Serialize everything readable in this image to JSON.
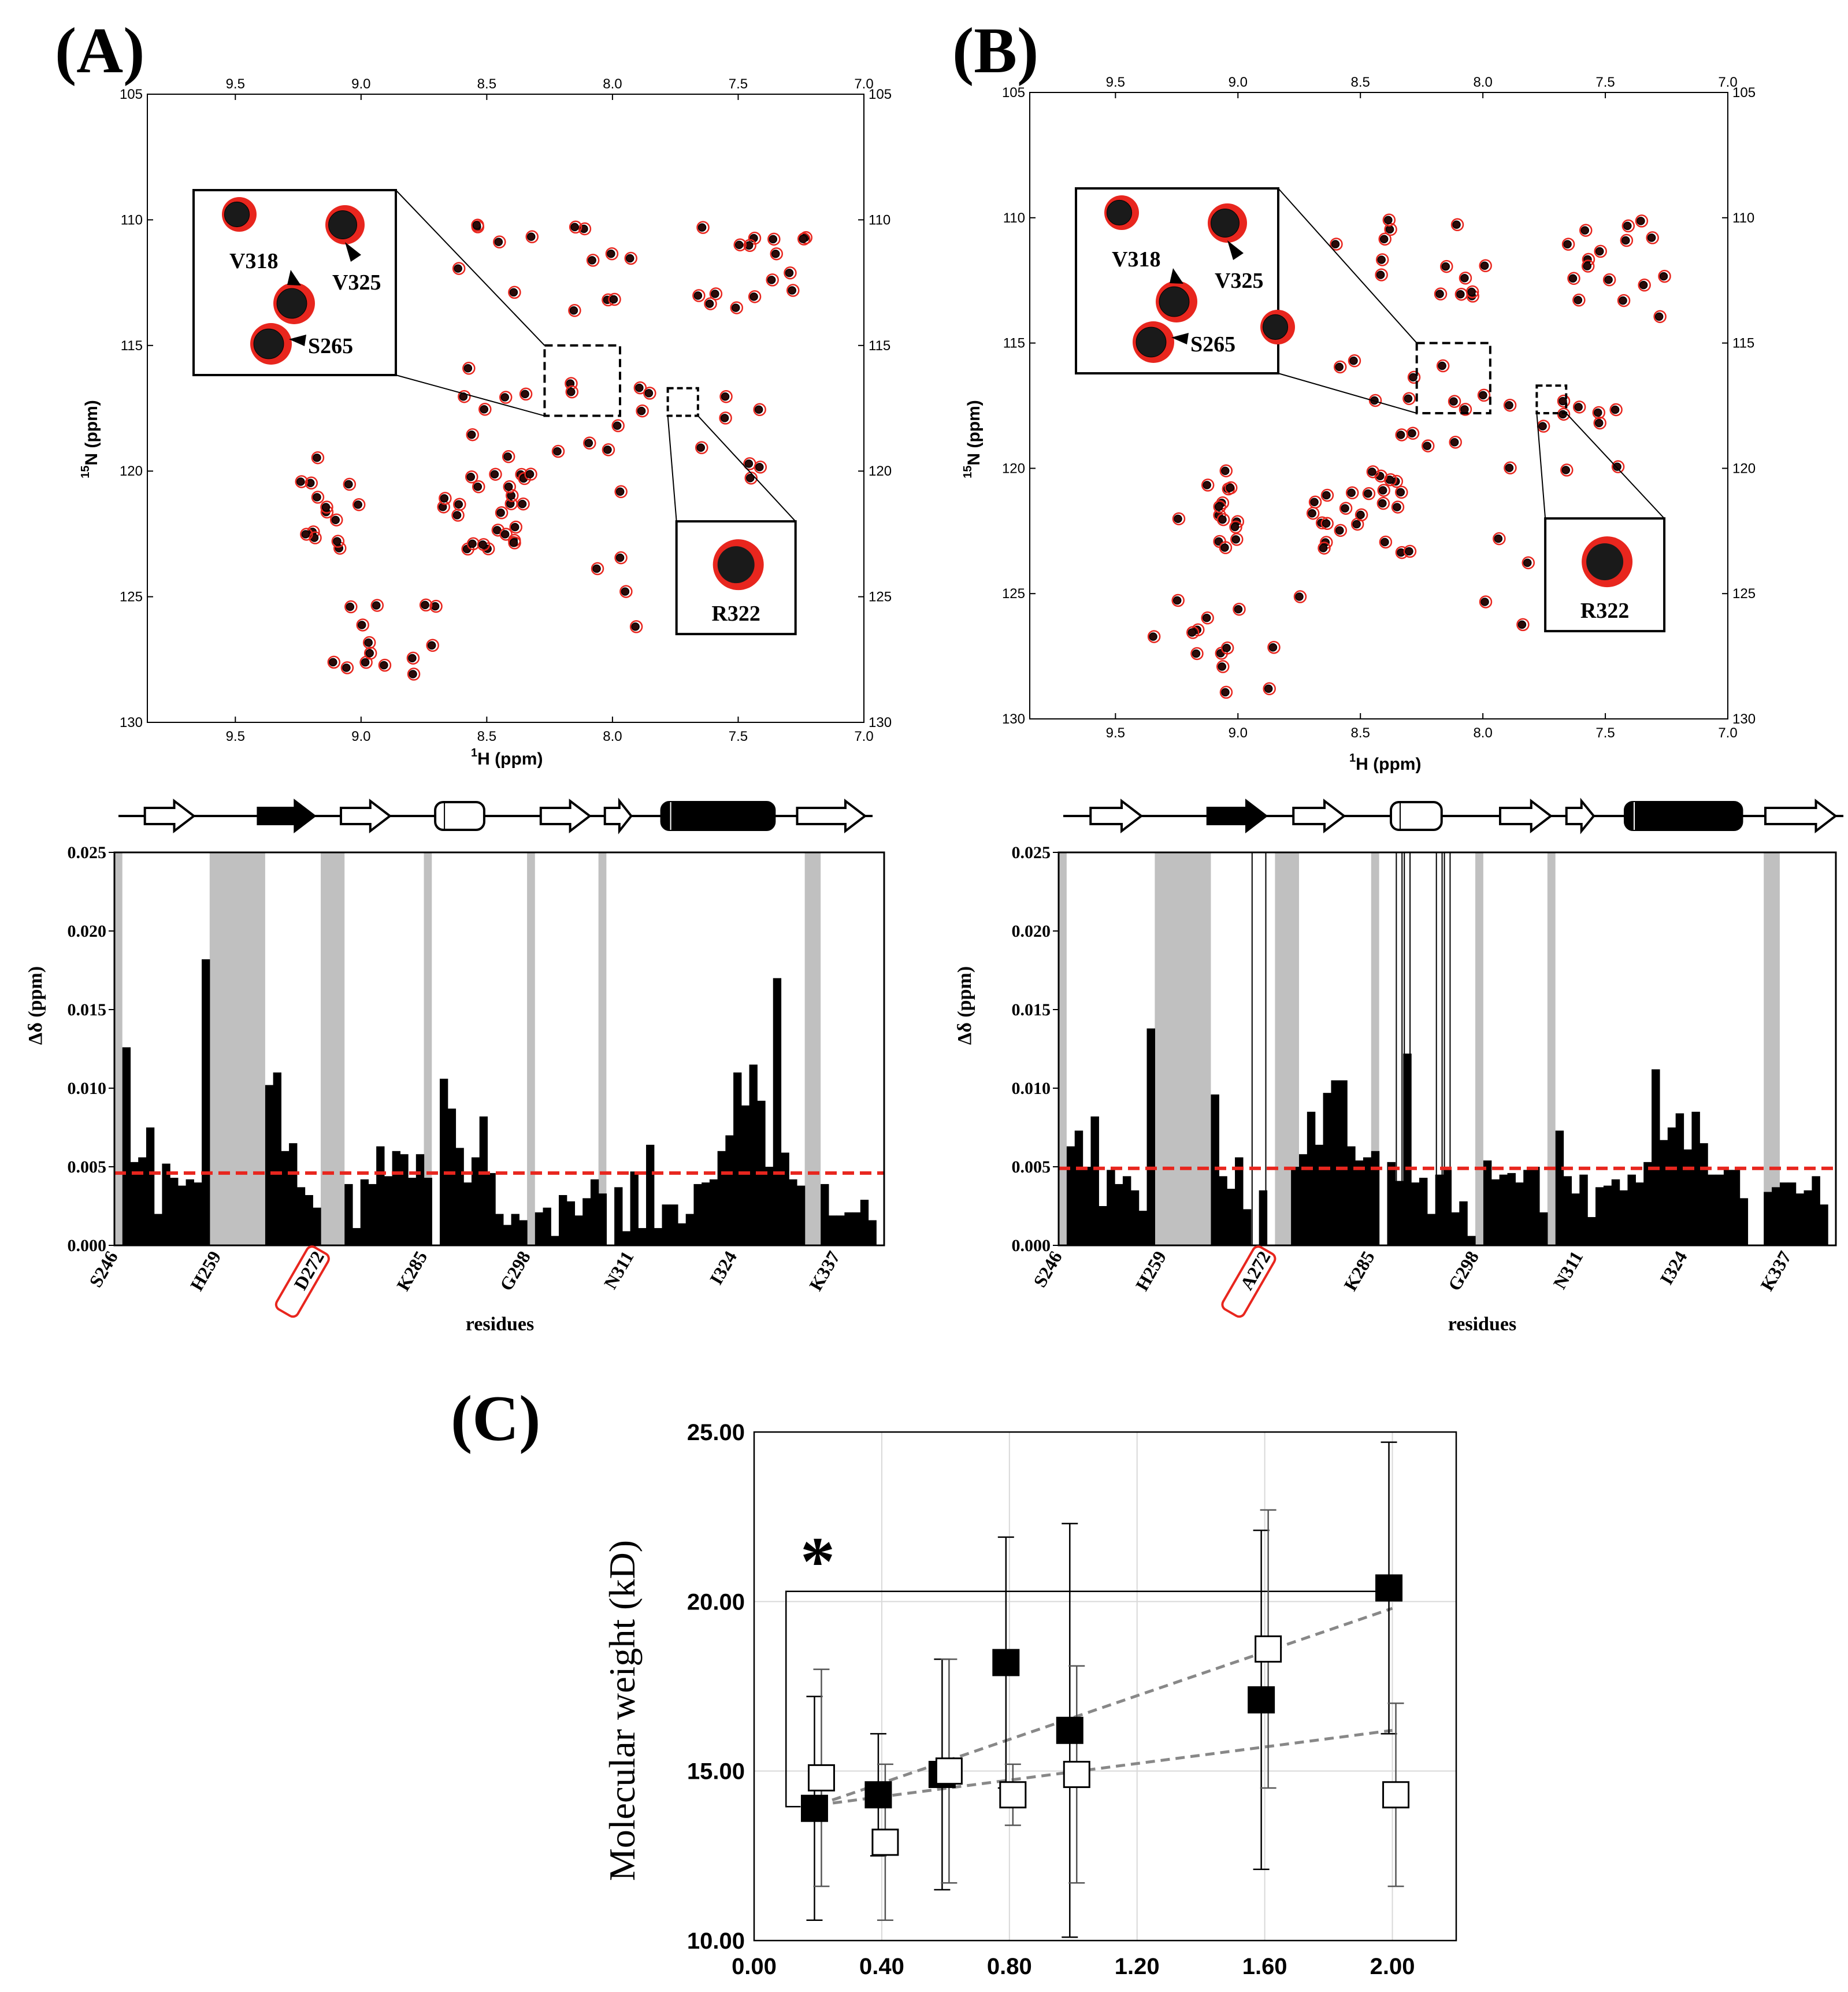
{
  "panels": {
    "A": {
      "label": "(A)",
      "hsqc": {
        "x_ticks": [
          "9.5",
          "9.0",
          "8.5",
          "8.0",
          "7.5",
          "7.0"
        ],
        "y_ticks": [
          "105",
          "110",
          "115",
          "120",
          "125",
          "130"
        ],
        "x_label": "1H (ppm)",
        "x_label_sup": "1",
        "x_label_main": "H (ppm)",
        "y_label_sup": "15",
        "y_label_main": "N (ppm)",
        "inset_labels": [
          "V318",
          "V325",
          "S265"
        ],
        "inset2_label": "R322"
      },
      "bar": {
        "y_ticks": [
          "0.025",
          "0.020",
          "0.015",
          "0.010",
          "0.005",
          "0.000"
        ],
        "y_label": "Δδ (ppm)",
        "x_ticks": [
          "S246",
          "H259",
          "D272",
          "K285",
          "G298",
          "N311",
          "I324",
          "K337"
        ],
        "highlight_tick": "D272",
        "x_label": "residues"
      }
    },
    "B": {
      "label": "(B)",
      "hsqc": {
        "x_ticks": [
          "9.5",
          "9.0",
          "8.5",
          "8.0",
          "7.5",
          "7.0"
        ],
        "y_ticks": [
          "105",
          "110",
          "115",
          "120",
          "125",
          "130"
        ],
        "x_label_sup": "1",
        "x_label_main": "H (ppm)",
        "y_label_sup": "15",
        "y_label_main": "N (ppm)",
        "inset_labels": [
          "V318",
          "V325",
          "S265"
        ],
        "inset2_label": "R322"
      },
      "bar": {
        "y_ticks": [
          "0.025",
          "0.020",
          "0.015",
          "0.010",
          "0.005",
          "0.000"
        ],
        "y_label": "Δδ (ppm)",
        "x_ticks": [
          "S246",
          "H259",
          "A272",
          "K285",
          "G298",
          "N311",
          "I324",
          "K337"
        ],
        "highlight_tick": "A272",
        "x_label": "residues"
      }
    },
    "C": {
      "label": "(C)",
      "significance": "*"
    }
  },
  "colors": {
    "threshold": "#e8261e",
    "gray_band": "#c0c0c0",
    "peak_red": "#e8261e",
    "trend": "#888888"
  },
  "chart_data": [
    {
      "type": "bar",
      "panel": "A",
      "title": "",
      "xlabel": "residues",
      "ylabel": "Δδ (ppm)",
      "ylim": [
        0,
        0.025
      ],
      "threshold": 0.0046,
      "residue_range": [
        246,
        342
      ],
      "tick_residues": [
        246,
        259,
        272,
        285,
        298,
        311,
        324,
        337
      ],
      "gray_bands": [
        [
          246,
          246
        ],
        [
          258,
          264
        ],
        [
          272,
          274
        ],
        [
          285,
          285
        ],
        [
          298,
          298
        ],
        [
          307,
          307
        ],
        [
          333,
          334
        ]
      ],
      "first_residue": 247,
      "values": [
        0.0126,
        0.0053,
        0.0056,
        0.0075,
        0.002,
        0.0052,
        0.0043,
        0.0038,
        0.0042,
        0.004,
        0.0182,
        0,
        0,
        0,
        0,
        0,
        0,
        0,
        0.0102,
        0.011,
        0.006,
        0.0065,
        0.0037,
        0.0032,
        0.0024,
        0,
        0,
        0,
        0.0039,
        0.0011,
        0.0042,
        0.0039,
        0.0063,
        0.0044,
        0.006,
        0.0058,
        0.0043,
        0.0058,
        0.0043,
        0,
        0.0106,
        0.0087,
        0.0062,
        0.004,
        0.0056,
        0.0082,
        0.0046,
        0.002,
        0.0013,
        0.002,
        0.0016,
        0,
        0.0021,
        0.0024,
        0.0006,
        0.0032,
        0.0028,
        0.0019,
        0.003,
        0.0042,
        0.0033,
        0,
        0.0037,
        0.0009,
        0.0047,
        0.0011,
        0.0064,
        0.0011,
        0.0026,
        0.0026,
        0.0014,
        0.002,
        0.0039,
        0.004,
        0.0042,
        0.006,
        0.007,
        0.011,
        0.0089,
        0.0115,
        0.0092,
        0.005,
        0.017,
        0.0059,
        0.0042,
        0.0038,
        0,
        0,
        0.0039,
        0.0019,
        0.0019,
        0.0021,
        0.0021,
        0.0029,
        0.0016
      ]
    },
    {
      "type": "bar",
      "panel": "B",
      "title": "",
      "xlabel": "residues",
      "ylabel": "Δδ (ppm)",
      "ylim": [
        0,
        0.025
      ],
      "threshold": 0.0049,
      "residue_range": [
        246,
        342
      ],
      "tick_residues": [
        246,
        259,
        272,
        285,
        298,
        311,
        324,
        337
      ],
      "gray_bands": [
        [
          246,
          246
        ],
        [
          258,
          264
        ],
        [
          273,
          275
        ],
        [
          285,
          285
        ],
        [
          298,
          298
        ],
        [
          307,
          307
        ],
        [
          334,
          335
        ]
      ],
      "outline_bands": [
        [
          270,
          271
        ],
        [
          288,
          288
        ],
        [
          289,
          289
        ],
        [
          293,
          293
        ],
        [
          294,
          294
        ]
      ],
      "first_residue": 247,
      "values": [
        0.0063,
        0.0073,
        0.005,
        0.0082,
        0.0025,
        0.0048,
        0.0039,
        0.0044,
        0.0035,
        0.0022,
        0.0138,
        0,
        0,
        0,
        0,
        0,
        0,
        0,
        0.0096,
        0.0044,
        0.0036,
        0.0056,
        0.0023,
        0,
        0.0035,
        0,
        0,
        0,
        0.005,
        0.0058,
        0.0085,
        0.0064,
        0.0097,
        0.0105,
        0.0105,
        0.0063,
        0.0054,
        0.0056,
        0.006,
        0,
        0.0053,
        0.0041,
        0.0122,
        0.004,
        0.0043,
        0.002,
        0.0045,
        0.005,
        0.0021,
        0.0028,
        0.0006,
        0,
        0.0054,
        0.0042,
        0.0045,
        0.0046,
        0.004,
        0.0048,
        0.005,
        0.0021,
        0,
        0.0073,
        0.0044,
        0.0033,
        0.0045,
        0.0018,
        0.0037,
        0.0038,
        0.0042,
        0.0035,
        0.0045,
        0.004,
        0.0053,
        0.0112,
        0.0067,
        0.0075,
        0.0084,
        0.0061,
        0.0085,
        0.0065,
        0.0045,
        0.0045,
        0.0048,
        0.0048,
        0.003,
        0,
        0,
        0.0034,
        0.0037,
        0.004,
        0.004,
        0.0033,
        0.0035,
        0.0044,
        0.0026
      ]
    },
    {
      "type": "scatter",
      "panel": "C",
      "title": "",
      "xlabel": "",
      "ylabel": "Molecular weight (kD)",
      "xlim": [
        0,
        2.2
      ],
      "ylim": [
        10,
        25
      ],
      "x_ticks": [
        "0.00",
        "0.40",
        "0.80",
        "1.20",
        "1.60",
        "2.00"
      ],
      "y_ticks": [
        "10.00",
        "15.00",
        "20.00",
        "25.00"
      ],
      "series": [
        {
          "name": "filled",
          "marker": "filled-square",
          "x": [
            0.2,
            0.4,
            0.6,
            0.8,
            1.0,
            1.6,
            2.0
          ],
          "y": [
            13.9,
            14.3,
            14.9,
            18.2,
            16.2,
            17.1,
            20.4
          ],
          "err": [
            3.3,
            1.8,
            3.4,
            3.7,
            6.1,
            5.0,
            4.3
          ],
          "trend": [
            [
              0.2,
              14.0
            ],
            [
              2.0,
              19.8
            ]
          ]
        },
        {
          "name": "open",
          "marker": "open-square",
          "x": [
            0.2,
            0.4,
            0.6,
            0.8,
            1.0,
            1.6,
            2.0
          ],
          "y": [
            14.8,
            12.9,
            15.0,
            14.3,
            14.9,
            18.6,
            14.3
          ],
          "err": [
            3.2,
            2.3,
            3.3,
            0.9,
            3.2,
            4.1,
            2.7
          ],
          "trend": [
            [
              0.2,
              14.0
            ],
            [
              2.0,
              16.2
            ]
          ]
        }
      ],
      "significance_bracket": {
        "x_from": 0.2,
        "x_to": 2.0,
        "y_level": 20.3
      }
    }
  ]
}
